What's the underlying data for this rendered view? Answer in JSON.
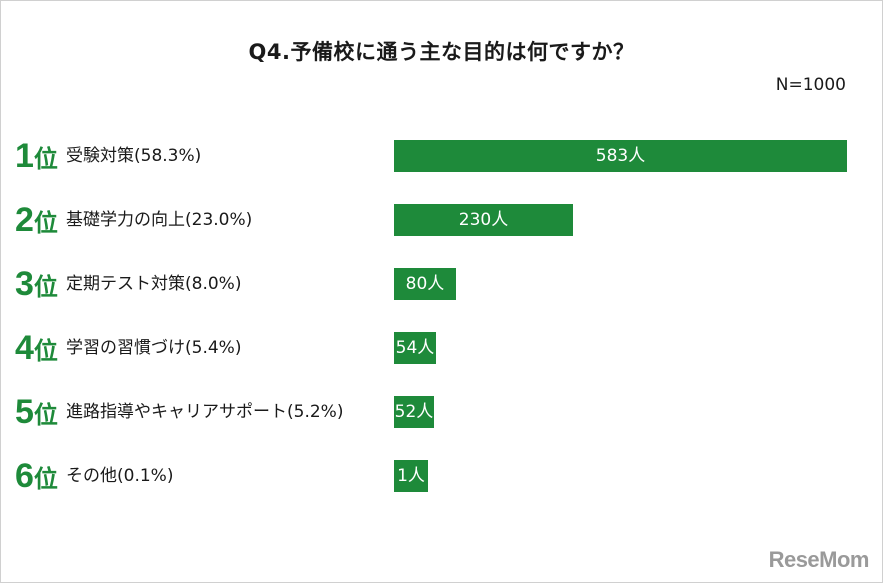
{
  "title": "Q4.予備校に通う主な目的は何ですか？",
  "n_label": "N=1000",
  "logo_text": "ReseMom",
  "colors": {
    "bar": "#1e8a3a",
    "rank": "#1e8a3a",
    "value_text": "#ffffff"
  },
  "chart_data": {
    "type": "bar",
    "orientation": "horizontal",
    "title": "Q4.予備校に通う主な目的は何ですか？",
    "xlim": [
      0,
      583
    ],
    "rows": [
      {
        "rank": "1",
        "rank_suffix": "位",
        "label": "受験対策(58.3%)",
        "value": 583,
        "value_label": "583人"
      },
      {
        "rank": "2",
        "rank_suffix": "位",
        "label": "基礎学力の向上(23.0%)",
        "value": 230,
        "value_label": "230人"
      },
      {
        "rank": "3",
        "rank_suffix": "位",
        "label": "定期テスト対策(8.0%)",
        "value": 80,
        "value_label": "80人"
      },
      {
        "rank": "4",
        "rank_suffix": "位",
        "label": "学習の習慣づけ(5.4%)",
        "value": 54,
        "value_label": "54人"
      },
      {
        "rank": "5",
        "rank_suffix": "位",
        "label": "進路指導やキャリアサポート(5.2%)",
        "value": 52,
        "value_label": "52人"
      },
      {
        "rank": "6",
        "rank_suffix": "位",
        "label": "その他(0.1%)",
        "value": 1,
        "value_label": "1人"
      }
    ]
  }
}
